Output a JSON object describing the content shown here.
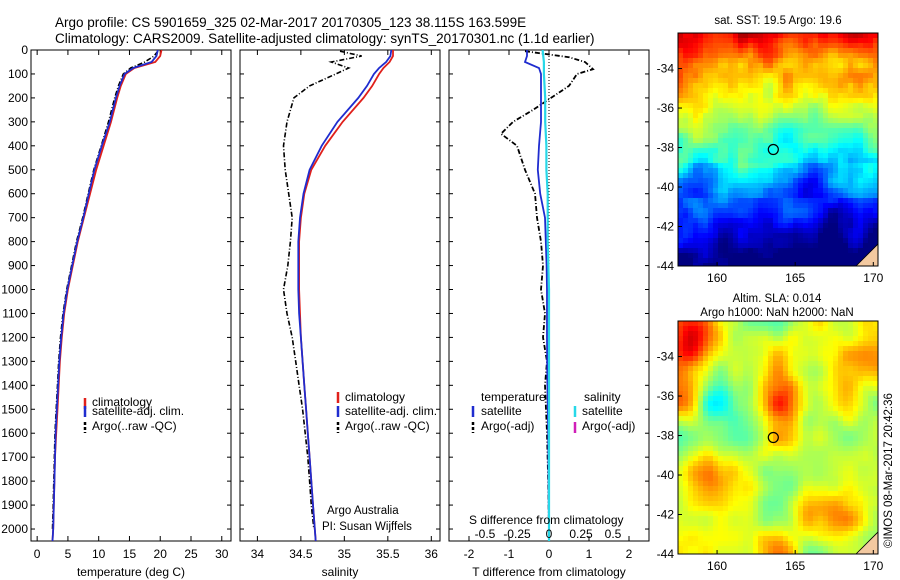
{
  "header": {
    "line1": "Argo profile: CS 5901659_325 02-Mar-2017 20170305_123 38.115S 163.599E",
    "line2": "Climatology: CARS2009. Satellite-adjusted climatology: synTS_20170301.nc (1.1d earlier)"
  },
  "credit": "©IMOS 08-Mar-2017 20:42:36",
  "colors": {
    "climatology": "#e0201b",
    "satellite": "#1f2ccf",
    "argo": "#000000",
    "sal_satellite": "#27d8e8",
    "sal_argo": "#d01fb8"
  },
  "chart_data": [
    {
      "type": "line",
      "id": "temperature",
      "xlabel": "temperature (deg C)",
      "xlim": [
        -1,
        31.5
      ],
      "xticks": [
        0,
        5,
        10,
        15,
        20,
        25,
        30
      ],
      "ylim": [
        2050,
        0
      ],
      "yticks": [
        0,
        100,
        200,
        300,
        400,
        500,
        600,
        700,
        800,
        900,
        1000,
        1100,
        1200,
        1300,
        1400,
        1500,
        1600,
        1700,
        1800,
        1900,
        2000
      ],
      "legend": [
        "climatology",
        "satellite-adj. clim.",
        "Argo(..raw -QC)"
      ],
      "series": [
        {
          "name": "climatology",
          "depth": [
            0,
            25,
            50,
            75,
            100,
            150,
            200,
            300,
            400,
            500,
            600,
            700,
            800,
            900,
            1000,
            1100,
            1200,
            1300,
            1400,
            1500,
            1600,
            1700,
            1800,
            1900,
            2000,
            2050
          ],
          "values": [
            20.2,
            20.0,
            19.2,
            15.8,
            14.4,
            13.6,
            13.0,
            12.0,
            10.8,
            9.6,
            8.6,
            7.6,
            6.6,
            5.8,
            5.0,
            4.4,
            4.0,
            3.7,
            3.5,
            3.3,
            3.1,
            2.9,
            2.8,
            2.7,
            2.6,
            2.5
          ]
        },
        {
          "name": "satellite-adj. clim.",
          "depth": [
            0,
            25,
            50,
            75,
            100,
            150,
            200,
            300,
            400,
            500,
            600,
            700,
            800,
            900,
            1000,
            1100,
            1200,
            1300,
            1400,
            1500,
            1600,
            1700,
            1800,
            1900,
            2000,
            2050
          ],
          "values": [
            19.6,
            19.4,
            18.6,
            15.6,
            14.2,
            13.4,
            12.8,
            11.8,
            10.5,
            9.3,
            8.4,
            7.5,
            6.5,
            5.7,
            4.9,
            4.3,
            3.9,
            3.6,
            3.4,
            3.2,
            3.0,
            2.9,
            2.8,
            2.7,
            2.6,
            2.5
          ]
        },
        {
          "name": "Argo(..raw -QC)",
          "depth": [
            5,
            25,
            50,
            75,
            100,
            150,
            200,
            300,
            400,
            500,
            600,
            700,
            800,
            900,
            1000,
            1100,
            1200,
            1300,
            1400,
            1500,
            1600,
            1700,
            1800,
            1900,
            2000
          ],
          "values": [
            19.6,
            19.0,
            17.5,
            15.2,
            14.0,
            13.2,
            12.6,
            11.6,
            10.4,
            9.2,
            8.3,
            7.4,
            6.4,
            5.6,
            4.8,
            4.2,
            3.8,
            3.5,
            3.3,
            3.1,
            2.9,
            2.8,
            2.7,
            2.6,
            2.5
          ]
        }
      ]
    },
    {
      "type": "line",
      "id": "salinity",
      "xlabel": "salinity",
      "xlim": [
        33.8,
        36.1
      ],
      "xticks": [
        34,
        34.5,
        35,
        35.5,
        36
      ],
      "ylim": [
        2050,
        0
      ],
      "legend": [
        "climatology",
        "satellite-adj. clim.",
        "Argo(..raw -QC)"
      ],
      "annotation": [
        "Argo Australia",
        "PI: Susan Wijffels"
      ],
      "series": [
        {
          "name": "climatology",
          "depth": [
            0,
            25,
            50,
            75,
            100,
            150,
            200,
            300,
            400,
            500,
            600,
            700,
            800,
            900,
            1000,
            1100,
            1200,
            1300,
            1400,
            1500,
            1600,
            1700,
            1800,
            1900,
            2000,
            2050
          ],
          "values": [
            35.56,
            35.56,
            35.52,
            35.45,
            35.4,
            35.32,
            35.22,
            34.98,
            34.78,
            34.62,
            34.54,
            34.5,
            34.48,
            34.48,
            34.48,
            34.49,
            34.5,
            34.52,
            34.54,
            34.56,
            34.58,
            34.6,
            34.62,
            34.64,
            34.66,
            34.67
          ]
        },
        {
          "name": "satellite-adj. clim.",
          "depth": [
            0,
            25,
            50,
            75,
            100,
            150,
            200,
            300,
            400,
            500,
            600,
            700,
            800,
            900,
            1000,
            1100,
            1200,
            1300,
            1400,
            1500,
            1600,
            1700,
            1800,
            1900,
            2000,
            2050
          ],
          "values": [
            35.54,
            35.53,
            35.48,
            35.4,
            35.34,
            35.26,
            35.16,
            34.92,
            34.74,
            34.6,
            34.53,
            34.49,
            34.47,
            34.47,
            34.47,
            34.48,
            34.5,
            34.52,
            34.54,
            34.56,
            34.58,
            34.6,
            34.62,
            34.64,
            34.66,
            34.67
          ]
        },
        {
          "name": "Argo(..raw -QC)",
          "depth": [
            5,
            25,
            50,
            75,
            100,
            150,
            200,
            300,
            400,
            500,
            600,
            700,
            800,
            900,
            1000,
            1100,
            1200,
            1300,
            1400,
            1500,
            1600,
            1700,
            1800,
            1900,
            2000
          ],
          "values": [
            34.95,
            35.2,
            34.85,
            35.05,
            34.9,
            34.6,
            34.42,
            34.34,
            34.3,
            34.32,
            34.36,
            34.4,
            34.38,
            34.35,
            34.3,
            34.34,
            34.4,
            34.44,
            34.48,
            34.52,
            34.55,
            34.58,
            34.6,
            34.62,
            34.65
          ]
        }
      ]
    },
    {
      "type": "line",
      "id": "difference",
      "xlabel": "T difference from climatology",
      "xlabel_top": "S difference from climatology",
      "xlim": [
        -2.5,
        2.5
      ],
      "xticks": [
        -2,
        -1,
        0,
        1,
        2
      ],
      "sticks": [
        -0.5,
        -0.25,
        0,
        0.25,
        0.5
      ],
      "stick_labels": [
        "-0.5",
        "-0.25",
        "0",
        "0.25",
        "0.5"
      ],
      "ylim": [
        2050,
        0
      ],
      "legend_headers": [
        "temperature",
        "salinity"
      ],
      "legend": [
        "satellite",
        "Argo(-adj)",
        "satellite",
        "Argo(-adj)"
      ],
      "series": [
        {
          "name": "temperature satellite",
          "depth": [
            0,
            25,
            50,
            75,
            100,
            150,
            200,
            300,
            400,
            500,
            600,
            700,
            800,
            900,
            1000,
            1200,
            1400,
            1600,
            1800,
            2050
          ],
          "values": [
            -0.55,
            -0.55,
            -0.6,
            -0.25,
            -0.2,
            -0.2,
            -0.2,
            -0.2,
            -0.25,
            -0.28,
            -0.22,
            -0.1,
            -0.08,
            -0.06,
            -0.05,
            -0.05,
            -0.04,
            -0.02,
            -0.01,
            0
          ]
        },
        {
          "name": "temperature Argo(-adj)",
          "depth": [
            5,
            30,
            50,
            80,
            100,
            150,
            250,
            300,
            350,
            400,
            500,
            600,
            700,
            800,
            900,
            1000,
            1100,
            1200,
            1300,
            1400,
            1600,
            1800,
            2000
          ],
          "values": [
            -0.6,
            0.5,
            0.9,
            1.1,
            0.7,
            0.5,
            -0.4,
            -0.9,
            -1.2,
            -0.8,
            -0.6,
            -0.35,
            -0.3,
            -0.2,
            -0.15,
            -0.2,
            -0.1,
            -0.15,
            -0.05,
            -0.1,
            -0.05,
            -0.02,
            0
          ]
        },
        {
          "name": "salinity satellite",
          "depth": [
            0,
            50,
            100,
            200,
            300,
            400,
            500,
            600,
            800,
            1000,
            1200,
            1500,
            2050
          ],
          "values": [
            -0.05,
            -0.04,
            -0.04,
            -0.03,
            -0.03,
            -0.02,
            -0.02,
            -0.01,
            -0.01,
            0,
            0,
            0,
            0
          ]
        }
      ]
    },
    {
      "type": "heatmap",
      "id": "sst-map",
      "title": "sat. SST: 19.5 Argo: 19.6",
      "xlim": [
        157.5,
        170.3
      ],
      "ylim": [
        -44,
        -32.2
      ],
      "xticks": [
        160,
        165,
        170
      ],
      "yticks": [
        -34,
        -36,
        -38,
        -40,
        -42,
        -44
      ],
      "marker": [
        163.6,
        -38.1
      ]
    },
    {
      "type": "heatmap",
      "id": "sla-map",
      "title": "Altim. SLA: 0.014",
      "subtitle": "Argo h1000: NaN h2000: NaN",
      "xlim": [
        157.5,
        170.3
      ],
      "ylim": [
        -44,
        -32.2
      ],
      "xticks": [
        160,
        165,
        170
      ],
      "yticks": [
        -34,
        -36,
        -38,
        -40,
        -42,
        -44
      ],
      "marker": [
        163.6,
        -38.1
      ]
    }
  ]
}
